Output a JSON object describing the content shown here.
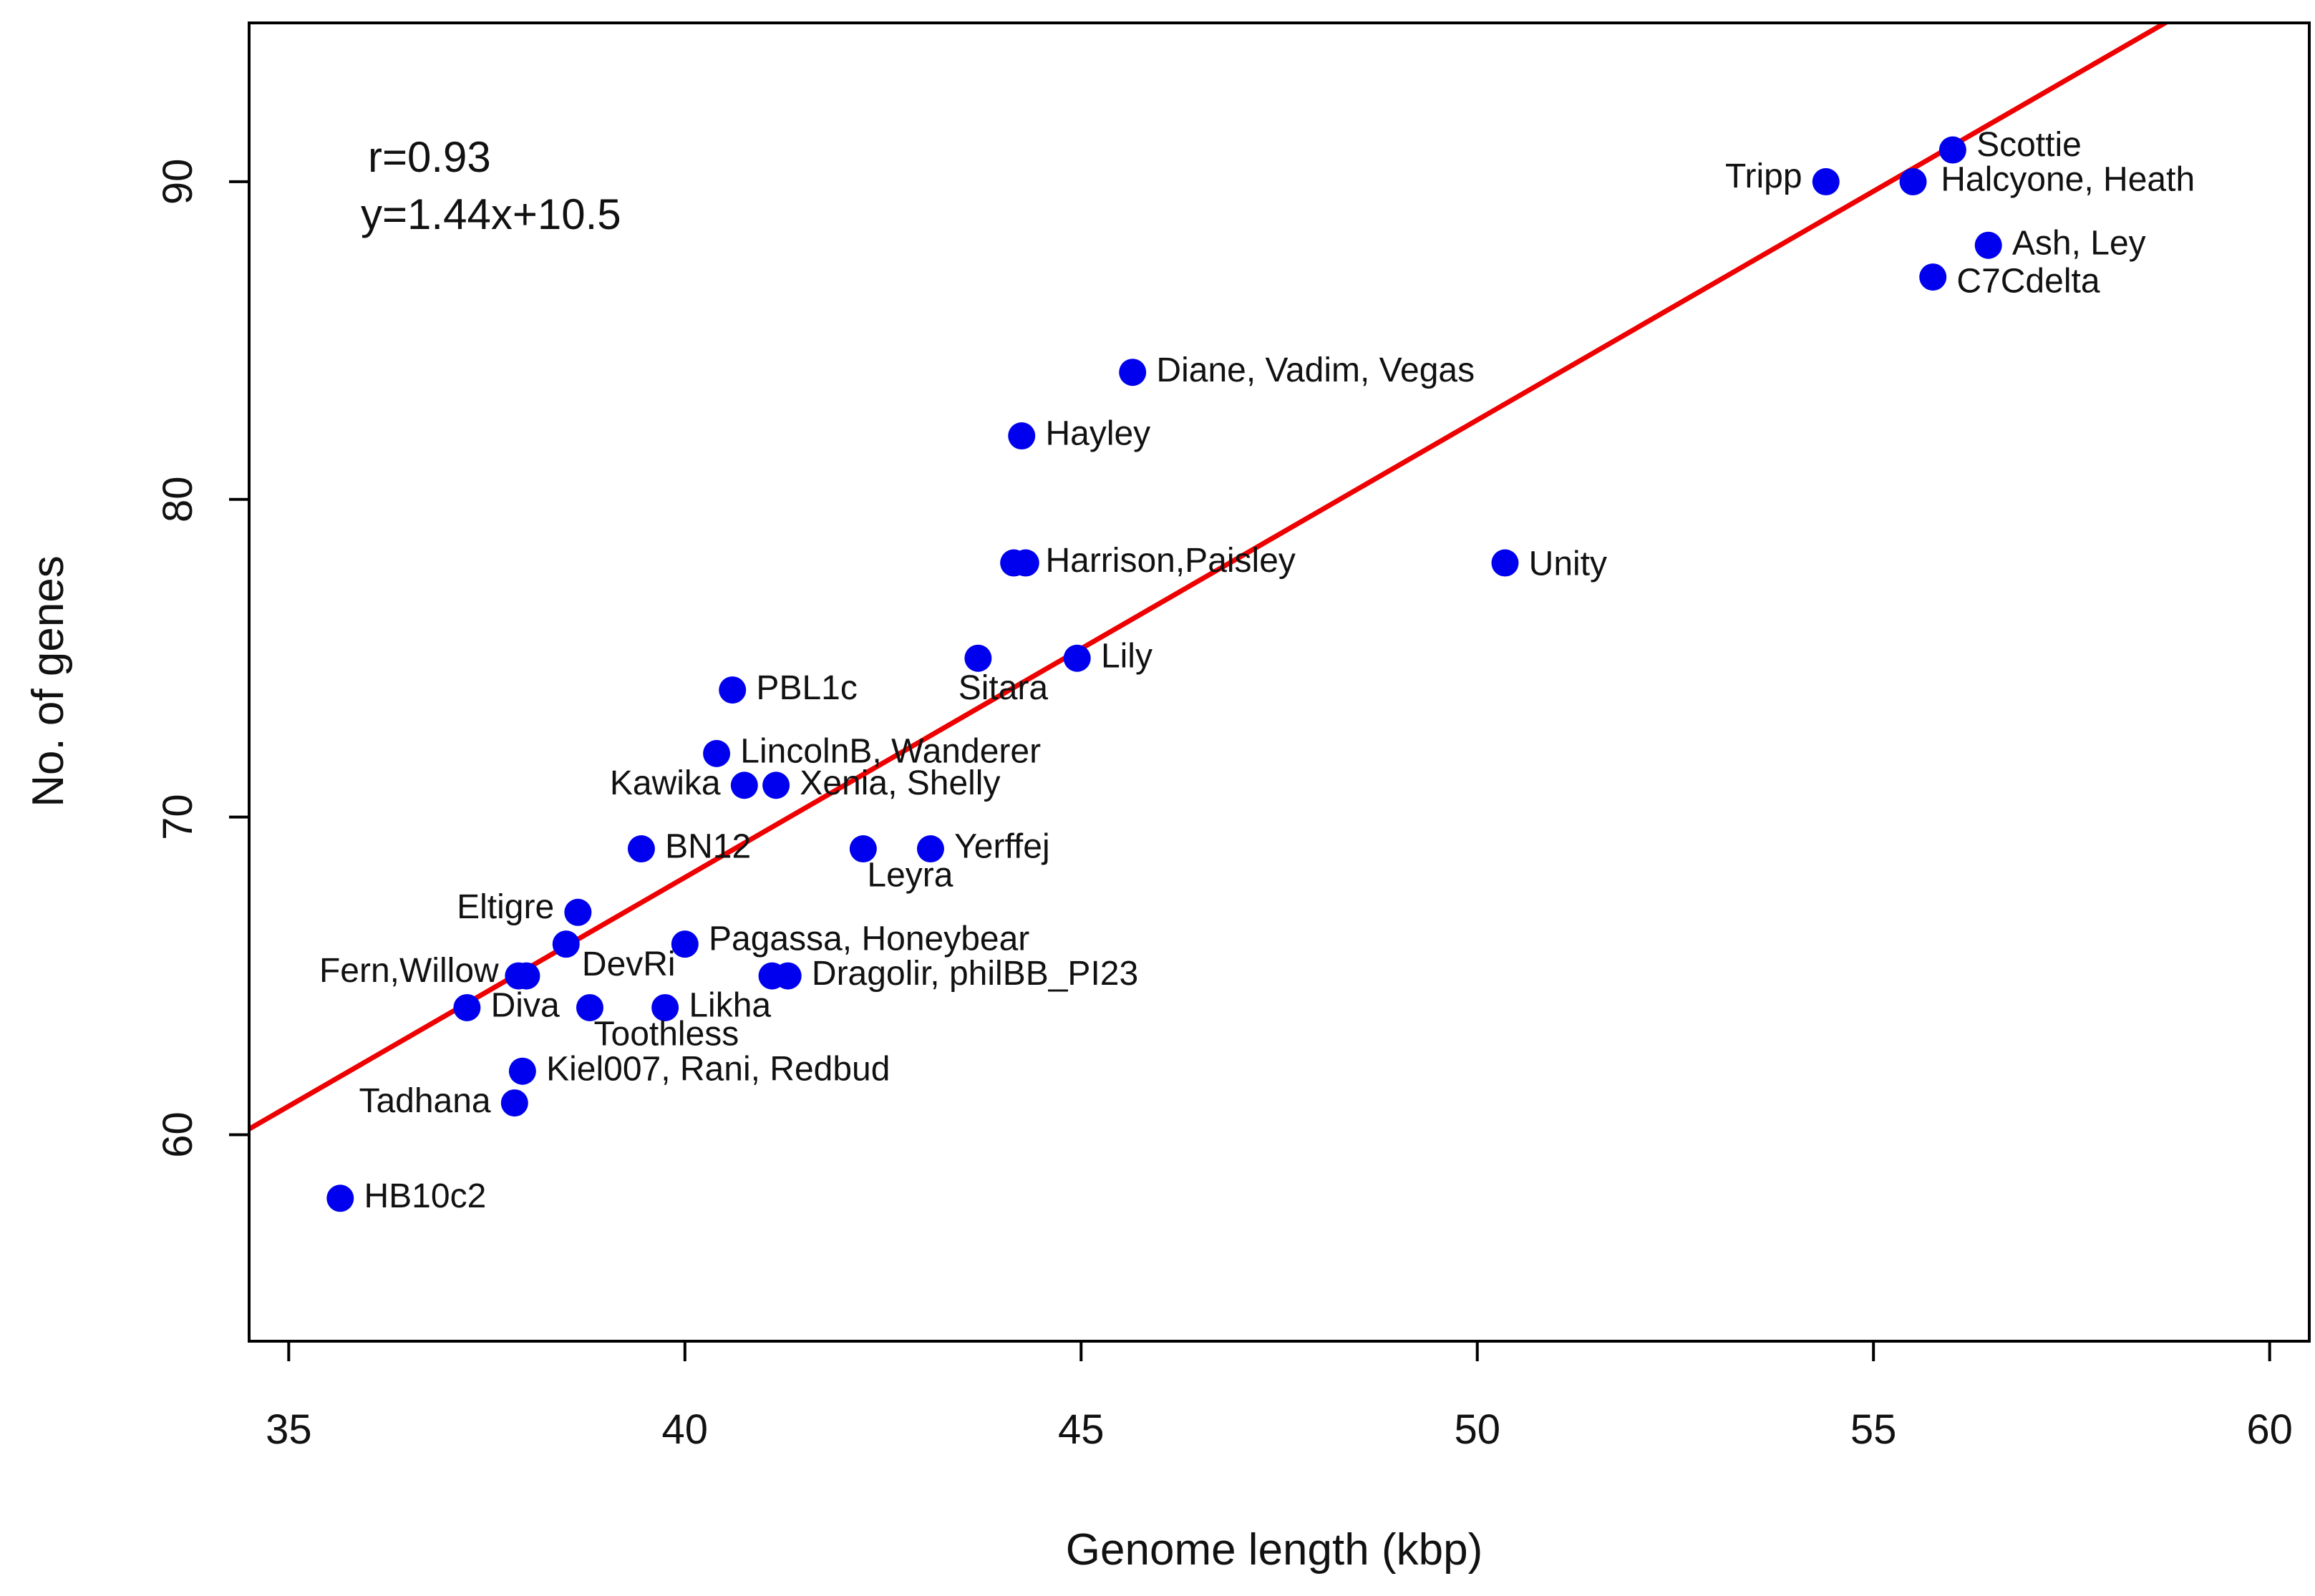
{
  "chart_data": {
    "type": "scatter",
    "title": "",
    "xlabel": "Genome length (kbp)",
    "ylabel": "No. of genes",
    "xlim": [
      34.5,
      60.5
    ],
    "ylim": [
      53.5,
      95
    ],
    "xticks": [
      35,
      40,
      45,
      50,
      55,
      60
    ],
    "yticks": [
      60,
      70,
      80,
      90
    ],
    "grid": false,
    "legend": "none",
    "annotations": {
      "r": "r=0.93",
      "equation": "y=1.44x+10.5"
    },
    "fit_line": {
      "slope": 1.44,
      "intercept": 10.5
    },
    "colors": {
      "points": "#0000ee",
      "fit": "#ee0000",
      "axis": "#000000"
    },
    "points": [
      {
        "x": 56.0,
        "y": 91
      },
      {
        "x": 54.4,
        "y": 90
      },
      {
        "x": 55.5,
        "y": 90
      },
      {
        "x": 56.45,
        "y": 88
      },
      {
        "x": 55.75,
        "y": 87
      },
      {
        "x": 45.65,
        "y": 84
      },
      {
        "x": 44.25,
        "y": 82
      },
      {
        "x": 44.15,
        "y": 78
      },
      {
        "x": 44.3,
        "y": 78
      },
      {
        "x": 50.35,
        "y": 78
      },
      {
        "x": 43.7,
        "y": 75
      },
      {
        "x": 44.95,
        "y": 75
      },
      {
        "x": 40.6,
        "y": 74
      },
      {
        "x": 40.4,
        "y": 72
      },
      {
        "x": 40.75,
        "y": 71
      },
      {
        "x": 41.15,
        "y": 71
      },
      {
        "x": 39.45,
        "y": 69
      },
      {
        "x": 42.25,
        "y": 69
      },
      {
        "x": 43.1,
        "y": 69
      },
      {
        "x": 38.65,
        "y": 67
      },
      {
        "x": 38.5,
        "y": 66
      },
      {
        "x": 40.0,
        "y": 66
      },
      {
        "x": 37.9,
        "y": 65
      },
      {
        "x": 38.0,
        "y": 65
      },
      {
        "x": 41.1,
        "y": 65
      },
      {
        "x": 41.3,
        "y": 65
      },
      {
        "x": 37.25,
        "y": 64
      },
      {
        "x": 38.8,
        "y": 64
      },
      {
        "x": 39.75,
        "y": 64
      },
      {
        "x": 37.95,
        "y": 62
      },
      {
        "x": 37.85,
        "y": 61
      },
      {
        "x": 35.65,
        "y": 58
      }
    ],
    "point_labels": [
      {
        "text": "Scottie",
        "x": 56.3,
        "y": 91.1,
        "anchor": "start"
      },
      {
        "text": "Tripp",
        "x": 54.1,
        "y": 90.1,
        "anchor": "end"
      },
      {
        "text": "Halcyone, Heath",
        "x": 55.85,
        "y": 90.0,
        "anchor": "start"
      },
      {
        "text": "Ash, Ley",
        "x": 56.75,
        "y": 88.0,
        "anchor": "start"
      },
      {
        "text": "C7Cdelta",
        "x": 56.05,
        "y": 86.8,
        "anchor": "start"
      },
      {
        "text": "Diane, Vadim, Vegas",
        "x": 45.95,
        "y": 84.0,
        "anchor": "start"
      },
      {
        "text": "Hayley",
        "x": 44.55,
        "y": 82.0,
        "anchor": "start"
      },
      {
        "text": "Harrison,Paisley",
        "x": 44.55,
        "y": 78.0,
        "anchor": "start"
      },
      {
        "text": "Unity",
        "x": 50.65,
        "y": 77.9,
        "anchor": "start"
      },
      {
        "text": "Lily",
        "x": 45.25,
        "y": 75.0,
        "anchor": "start"
      },
      {
        "text": "Sitara",
        "x": 43.45,
        "y": 74.0,
        "anchor": "start"
      },
      {
        "text": "PBL1c",
        "x": 40.9,
        "y": 74.0,
        "anchor": "start"
      },
      {
        "text": "LincolnB, Wanderer",
        "x": 40.7,
        "y": 72.0,
        "anchor": "start"
      },
      {
        "text": "Kawika",
        "x": 40.45,
        "y": 71.0,
        "anchor": "end"
      },
      {
        "text": "Xenia, Shelly",
        "x": 41.45,
        "y": 71.0,
        "anchor": "start"
      },
      {
        "text": "BN12",
        "x": 39.75,
        "y": 69.0,
        "anchor": "start"
      },
      {
        "text": "Yerffej",
        "x": 43.4,
        "y": 69.0,
        "anchor": "start"
      },
      {
        "text": "Leyra",
        "x": 42.3,
        "y": 68.1,
        "anchor": "start"
      },
      {
        "text": "Eltigre",
        "x": 38.35,
        "y": 67.1,
        "anchor": "end"
      },
      {
        "text": "Pagassa, Honeybear",
        "x": 40.3,
        "y": 66.1,
        "anchor": "start"
      },
      {
        "text": "DevRi",
        "x": 38.7,
        "y": 65.3,
        "anchor": "start"
      },
      {
        "text": "Fern,Willow",
        "x": 37.65,
        "y": 65.1,
        "anchor": "end"
      },
      {
        "text": "Dragolir, philBB_PI23",
        "x": 41.6,
        "y": 65.0,
        "anchor": "start"
      },
      {
        "text": "Diva",
        "x": 37.55,
        "y": 64.0,
        "anchor": "start"
      },
      {
        "text": "Likha",
        "x": 40.05,
        "y": 64.0,
        "anchor": "start"
      },
      {
        "text": "Toothless",
        "x": 38.85,
        "y": 63.1,
        "anchor": "start"
      },
      {
        "text": "Kiel007, Rani, Redbud",
        "x": 38.25,
        "y": 62.0,
        "anchor": "start"
      },
      {
        "text": "Tadhana",
        "x": 37.55,
        "y": 61.0,
        "anchor": "end"
      },
      {
        "text": "HB10c2",
        "x": 35.95,
        "y": 58.0,
        "anchor": "start"
      }
    ]
  }
}
